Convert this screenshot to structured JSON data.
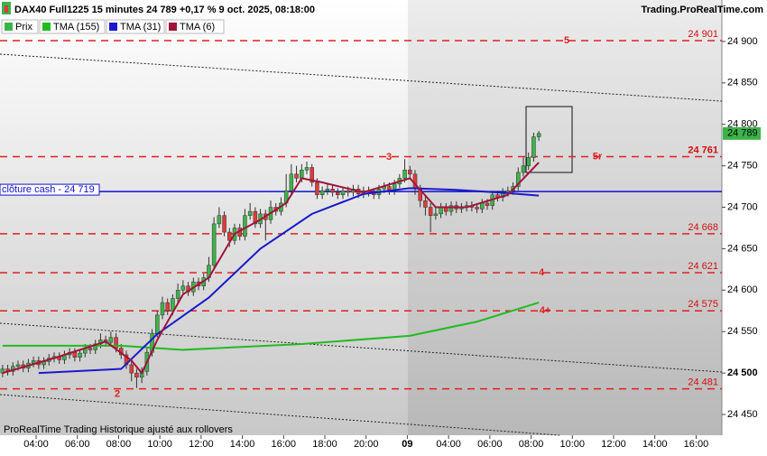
{
  "chart_data": {
    "type": "candlestick",
    "title": "DAX40 Full1225 15 minutes 24 789 +0,17 % 9 oct. 2025, 08:18:00",
    "source": "Trading.ProRealTime.com",
    "footer": "ProRealTime Trading  Historique ajusté aux rollovers",
    "xlim": [
      -0.5,
      139.5
    ],
    "xticks": [
      {
        "value": 6.5,
        "label": "04:00"
      },
      {
        "value": 14.5,
        "label": "06:00"
      },
      {
        "value": 22.5,
        "label": "08:00"
      },
      {
        "value": 30.5,
        "label": "10:00"
      },
      {
        "value": 38.5,
        "label": "12:00"
      },
      {
        "value": 46.5,
        "label": "14:00"
      },
      {
        "value": 54.5,
        "label": "16:00"
      },
      {
        "value": 62.5,
        "label": "18:00"
      },
      {
        "value": 70.5,
        "label": "20:00"
      },
      {
        "value": 78.5,
        "label": "09"
      },
      {
        "value": 86.5,
        "label": "04:00"
      },
      {
        "value": 94.5,
        "label": "06:00"
      },
      {
        "value": 102.5,
        "label": "08:00"
      },
      {
        "value": 110.5,
        "label": "10:00"
      },
      {
        "value": 118.5,
        "label": "12:00"
      },
      {
        "value": 126.5,
        "label": "14:00"
      },
      {
        "value": 134.5,
        "label": "16:00"
      }
    ],
    "ylim": [
      24425,
      24950
    ],
    "yticks": [
      {
        "value": 24450,
        "label": "24 450"
      },
      {
        "value": 24500,
        "label": "24 500"
      },
      {
        "value": 24550,
        "label": "24 550"
      },
      {
        "value": 24600,
        "label": "24 600"
      },
      {
        "value": 24650,
        "label": "24 650"
      },
      {
        "value": 24700,
        "label": "24 700"
      },
      {
        "value": 24750,
        "label": "24 750"
      },
      {
        "value": 24800,
        "label": "24 800"
      },
      {
        "value": 24850,
        "label": "24 850"
      },
      {
        "value": 24900,
        "label": "24 900"
      }
    ],
    "candles": {
      "name": "Prix",
      "up_color": "#3cb34a",
      "down_color": "#e03a3a",
      "open": [
        24500,
        24505,
        24502,
        24508,
        24510,
        24506,
        24512,
        24515,
        24510,
        24514,
        24518,
        24520,
        24516,
        24522,
        24525,
        24519,
        24524,
        24530,
        24528,
        24535,
        24540,
        24537,
        24543,
        24530,
        24522,
        24510,
        24500,
        24495,
        24502,
        24525,
        24548,
        24570,
        24585,
        24575,
        24590,
        24600,
        24605,
        24598,
        24610,
        24605,
        24615,
        24630,
        24680,
        24690,
        24670,
        24660,
        24675,
        24665,
        24690,
        24695,
        24680,
        24692,
        24685,
        24700,
        24695,
        24705,
        24720,
        24740,
        24735,
        24745,
        24748,
        24730,
        24715,
        24720,
        24722,
        24718,
        24715,
        24720,
        24718,
        24722,
        24716,
        24720,
        24718,
        24715,
        24722,
        24725,
        24720,
        24728,
        24735,
        24745,
        24740,
        24722,
        24708,
        24700,
        24690,
        24692,
        24700,
        24695,
        24702,
        24698,
        24700,
        24702,
        24700,
        24698,
        24705,
        24702,
        24715,
        24712,
        24718,
        24720,
        24725,
        24742,
        24750,
        24760,
        24785
      ],
      "high": [
        24510,
        24510,
        24513,
        24515,
        24515,
        24517,
        24520,
        24520,
        24519,
        24523,
        24525,
        24525,
        24527,
        24530,
        24530,
        24529,
        24535,
        24535,
        24540,
        24548,
        24545,
        24550,
        24548,
        24535,
        24527,
        24515,
        24505,
        24507,
        24530,
        24553,
        24575,
        24592,
        24590,
        24595,
        24608,
        24612,
        24610,
        24615,
        24615,
        24620,
        24640,
        24688,
        24700,
        24695,
        24675,
        24680,
        24680,
        24698,
        24705,
        24700,
        24698,
        24697,
        24708,
        24705,
        24712,
        24740,
        24752,
        24750,
        24752,
        24755,
        24752,
        24735,
        24725,
        24728,
        24727,
        24723,
        24725,
        24725,
        24727,
        24727,
        24725,
        24725,
        24723,
        24727,
        24730,
        24730,
        24733,
        24740,
        24758,
        24750,
        24745,
        24727,
        24713,
        24705,
        24700,
        24705,
        24705,
        24707,
        24707,
        24705,
        24707,
        24707,
        24705,
        24710,
        24710,
        24720,
        24720,
        24723,
        24725,
        24730,
        24748,
        24760,
        24766,
        24790,
        24792
      ],
      "low": [
        24495,
        24497,
        24497,
        24503,
        24501,
        24501,
        24507,
        24505,
        24505,
        24509,
        24513,
        24511,
        24511,
        24517,
        24514,
        24514,
        24519,
        24523,
        24523,
        24530,
        24532,
        24532,
        24525,
        24517,
        24505,
        24490,
        24482,
        24488,
        24497,
        24520,
        24543,
        24565,
        24570,
        24570,
        24585,
        24595,
        24593,
        24593,
        24600,
        24600,
        24610,
        24625,
        24675,
        24665,
        24652,
        24655,
        24660,
        24660,
        24685,
        24675,
        24675,
        24660,
        24680,
        24690,
        24690,
        24700,
        24715,
        24730,
        24730,
        24740,
        24725,
        24710,
        24710,
        24715,
        24713,
        24710,
        24710,
        24713,
        24713,
        24711,
        24711,
        24713,
        24710,
        24710,
        24717,
        24715,
        24715,
        24723,
        24730,
        24735,
        24715,
        24700,
        24690,
        24670,
        24685,
        24687,
        24690,
        24690,
        24693,
        24693,
        24695,
        24695,
        24693,
        24693,
        24697,
        24697,
        24707,
        24707,
        24713,
        24715,
        24720,
        24737,
        24745,
        24755,
        24780
      ],
      "close": [
        24505,
        24502,
        24508,
        24510,
        24506,
        24512,
        24515,
        24510,
        24514,
        24518,
        24520,
        24516,
        24522,
        24525,
        24519,
        24524,
        24530,
        24528,
        24535,
        24540,
        24537,
        24543,
        24530,
        24522,
        24510,
        24500,
        24495,
        24502,
        24525,
        24548,
        24570,
        24585,
        24575,
        24590,
        24600,
        24605,
        24598,
        24610,
        24605,
        24615,
        24630,
        24680,
        24690,
        24670,
        24660,
        24675,
        24665,
        24690,
        24695,
        24680,
        24692,
        24685,
        24700,
        24695,
        24705,
        24720,
        24740,
        24735,
        24745,
        24748,
        24730,
        24715,
        24720,
        24722,
        24718,
        24715,
        24720,
        24718,
        24722,
        24716,
        24720,
        24718,
        24715,
        24722,
        24725,
        24720,
        24728,
        24735,
        24745,
        24740,
        24722,
        24708,
        24700,
        24690,
        24692,
        24700,
        24695,
        24702,
        24698,
        24700,
        24702,
        24700,
        24698,
        24705,
        24702,
        24715,
        24712,
        24718,
        24720,
        24725,
        24742,
        24750,
        24760,
        24785,
        24789
      ]
    },
    "series": [
      {
        "name": "TMA (155)",
        "color": "#22bb22",
        "x": [
          0,
          23,
          35,
          58,
          79,
          92,
          104
        ],
        "values": [
          24533,
          24533,
          24528,
          24535,
          24545,
          24562,
          24585
        ]
      },
      {
        "name": "TMA (31)",
        "color": "#1a1acc",
        "x": [
          7,
          23,
          30,
          40,
          50,
          60,
          70,
          79,
          88,
          98,
          104
        ],
        "values": [
          24500,
          24505,
          24547,
          24591,
          24650,
          24692,
          24716,
          24723,
          24721,
          24717,
          24714
        ]
      },
      {
        "name": "TMA (6)",
        "color": "#a0143a",
        "x": [
          0,
          10,
          20,
          25,
          27,
          30,
          35,
          40,
          45,
          50,
          55,
          58,
          62,
          70,
          79,
          84,
          90,
          98,
          104
        ],
        "values": [
          24500,
          24518,
          24538,
          24515,
          24500,
          24540,
          24595,
          24615,
          24668,
          24685,
          24705,
          24735,
          24730,
          24718,
          24735,
          24700,
          24700,
          24715,
          24754
        ]
      }
    ],
    "levels": [
      {
        "value": 24901,
        "label": "24 901",
        "annotation": "5"
      },
      {
        "value": 24761,
        "label": "24 761",
        "annotation": "5r"
      },
      {
        "value": 24668,
        "label": "24 668"
      },
      {
        "value": 24621,
        "label": "24 621",
        "annotation": "4"
      },
      {
        "value": 24575,
        "label": "24 575",
        "annotation": "4+"
      },
      {
        "value": 24481,
        "label": "24 481",
        "annotation": "2"
      }
    ],
    "peak_annotation": "3",
    "cash_close": {
      "value": 24719,
      "label": "clôture cash -  24 719"
    },
    "last_price": {
      "value": 24789,
      "label": "24 789"
    }
  }
}
